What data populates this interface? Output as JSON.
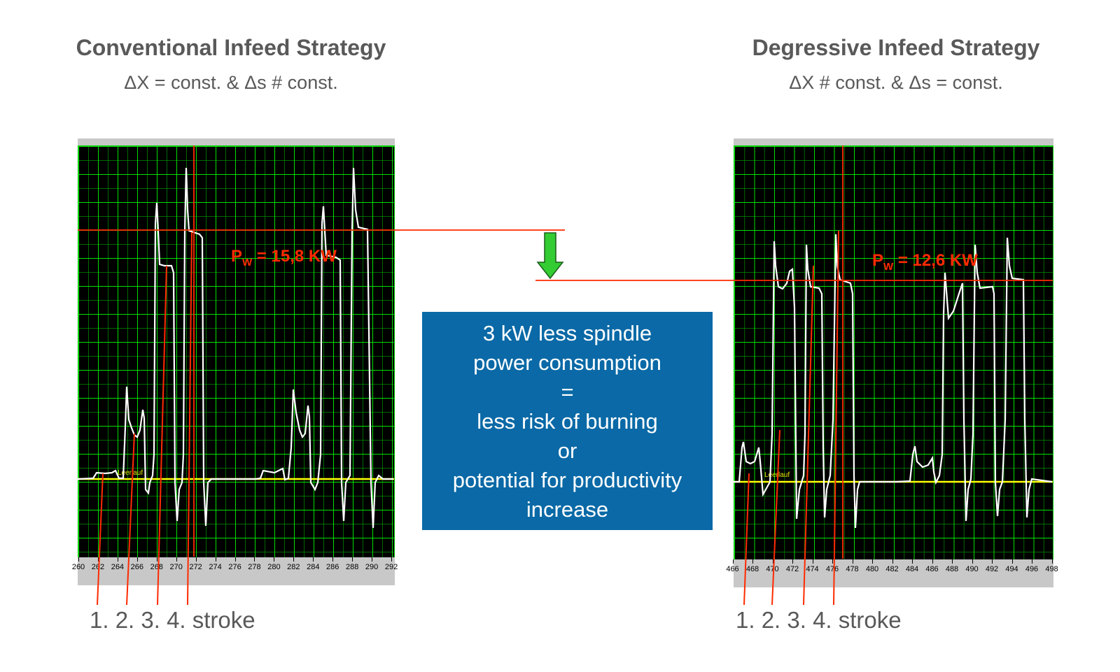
{
  "left": {
    "title": "Conventional Infeed Strategy",
    "subtitle": "ΔX = const.  &  Δs # const.",
    "power_label": "P",
    "power_sub": "W",
    "power_value": " = 15,8 KW",
    "idle_label": "Leerlauf",
    "ticks": [
      "260",
      "262",
      "264",
      "266",
      "268",
      "270",
      "272",
      "274",
      "276",
      "278",
      "280",
      "282",
      "284",
      "286",
      "288",
      "290",
      "292"
    ],
    "stroke_label": "1. 2.  3. 4. stroke"
  },
  "right": {
    "title": "Degressive Infeed Strategy",
    "subtitle": "ΔX # const.  &  Δs = const.",
    "power_label": "P",
    "power_sub": "W",
    "power_value": " = 12,6 KW",
    "idle_label": "Leerlauf",
    "ticks": [
      "466",
      "468",
      "470",
      "472",
      "474",
      "476",
      "478",
      "480",
      "482",
      "484",
      "486",
      "488",
      "490",
      "492",
      "494",
      "496",
      "498"
    ],
    "stroke_label": "1. 2.  3. 4. stroke"
  },
  "callout": {
    "lines": [
      "3 kW less spindle",
      "power consumption",
      "=",
      "less risk of burning",
      "or",
      "potential for productivity",
      "increase"
    ]
  },
  "colors": {
    "trace": "#ffffff",
    "grid": "#00e600",
    "idle_line": "#ffff00",
    "marker": "#ff2a00",
    "arrow": "#33cc33",
    "callout_bg": "#0a69a6"
  },
  "icons": {
    "arrow": "down-arrow-icon"
  }
}
